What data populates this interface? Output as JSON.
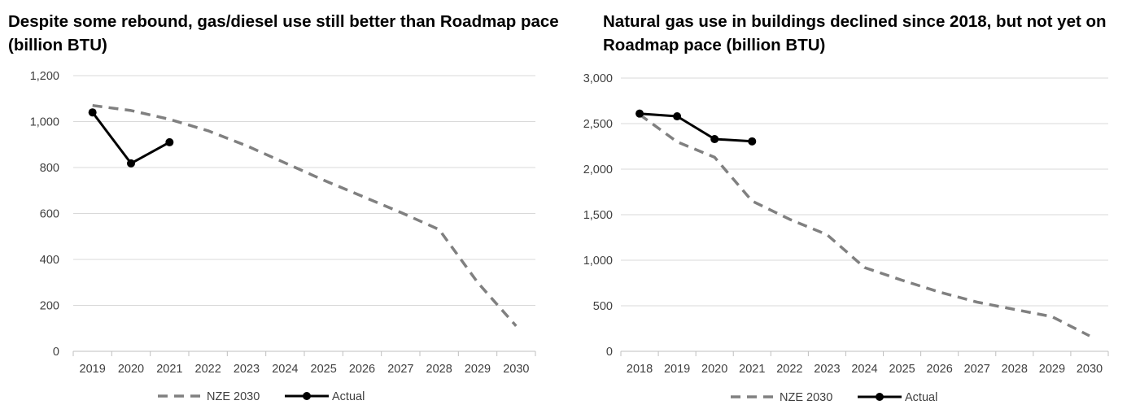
{
  "chart_data": [
    {
      "type": "line",
      "title": "Despite some rebound, gas/diesel use still better than Roadmap pace (billion BTU)",
      "xlabel": "",
      "ylabel": "",
      "categories": [
        "2019",
        "2020",
        "2021",
        "2022",
        "2023",
        "2024",
        "2025",
        "2026",
        "2027",
        "2028",
        "2029",
        "2030"
      ],
      "ylim": [
        0,
        1200
      ],
      "yticks": [
        "0",
        "200",
        "400",
        "600",
        "800",
        "1,000",
        "1,200"
      ],
      "grid": true,
      "legend": "bottom-center",
      "series": [
        {
          "name": "NZE 2030",
          "style": "dashed",
          "color": "#808080",
          "values": [
            1070,
            1048,
            1010,
            960,
            895,
            820,
            745,
            675,
            605,
            530,
            300,
            110
          ]
        },
        {
          "name": "Actual",
          "style": "solid-markers",
          "color": "#000000",
          "values": [
            1040,
            818,
            910,
            null,
            null,
            null,
            null,
            null,
            null,
            null,
            null,
            null
          ]
        }
      ]
    },
    {
      "type": "line",
      "title": "Natural gas use in buildings declined since 2018, but not yet on Roadmap pace (billion BTU)",
      "xlabel": "",
      "ylabel": "",
      "categories": [
        "2018",
        "2019",
        "2020",
        "2021",
        "2022",
        "2023",
        "2024",
        "2025",
        "2026",
        "2027",
        "2028",
        "2029",
        "2030"
      ],
      "ylim": [
        0,
        3000
      ],
      "yticks": [
        "0",
        "500",
        "1,000",
        "1,500",
        "2,000",
        "2,500",
        "3,000"
      ],
      "grid": true,
      "legend": "bottom-center",
      "series": [
        {
          "name": "NZE 2030",
          "style": "dashed",
          "color": "#808080",
          "values": [
            2600,
            2300,
            2130,
            1650,
            1450,
            1280,
            920,
            780,
            650,
            540,
            460,
            380,
            170
          ]
        },
        {
          "name": "Actual",
          "style": "solid-markers",
          "color": "#000000",
          "values": [
            2610,
            2580,
            2330,
            2305,
            null,
            null,
            null,
            null,
            null,
            null,
            null,
            null,
            null
          ]
        }
      ]
    }
  ]
}
